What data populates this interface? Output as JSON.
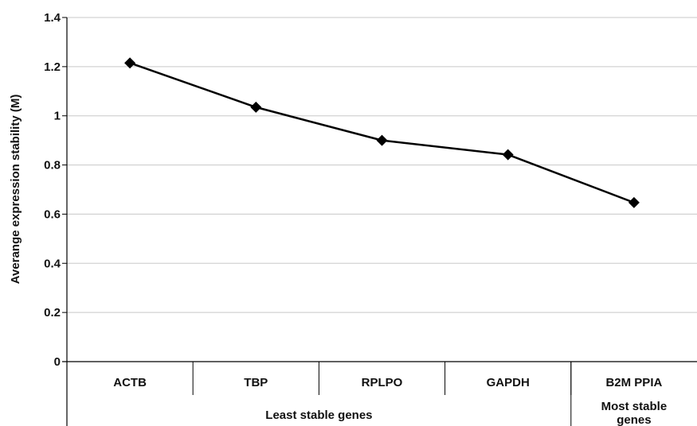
{
  "chart_data": {
    "type": "line",
    "ylabel": "Averange expression stability (M)",
    "ylim": [
      0,
      1.4
    ],
    "yticks": [
      "0",
      "0.2",
      "0.4",
      "0.6",
      "0.8",
      "1",
      "1.2",
      "1.4"
    ],
    "categories": [
      "ACTB",
      "TBP",
      "RPLPO",
      "GAPDH",
      "B2M PPIA"
    ],
    "groups": [
      {
        "label": "Least stable genes",
        "span": 4
      },
      {
        "label": "Most stable genes",
        "span": 1
      }
    ],
    "series": [
      {
        "values": [
          1.215,
          1.035,
          0.9,
          0.842,
          0.647
        ],
        "color": "#000000",
        "marker": "diamond"
      }
    ],
    "grid": true,
    "legend": "none"
  }
}
